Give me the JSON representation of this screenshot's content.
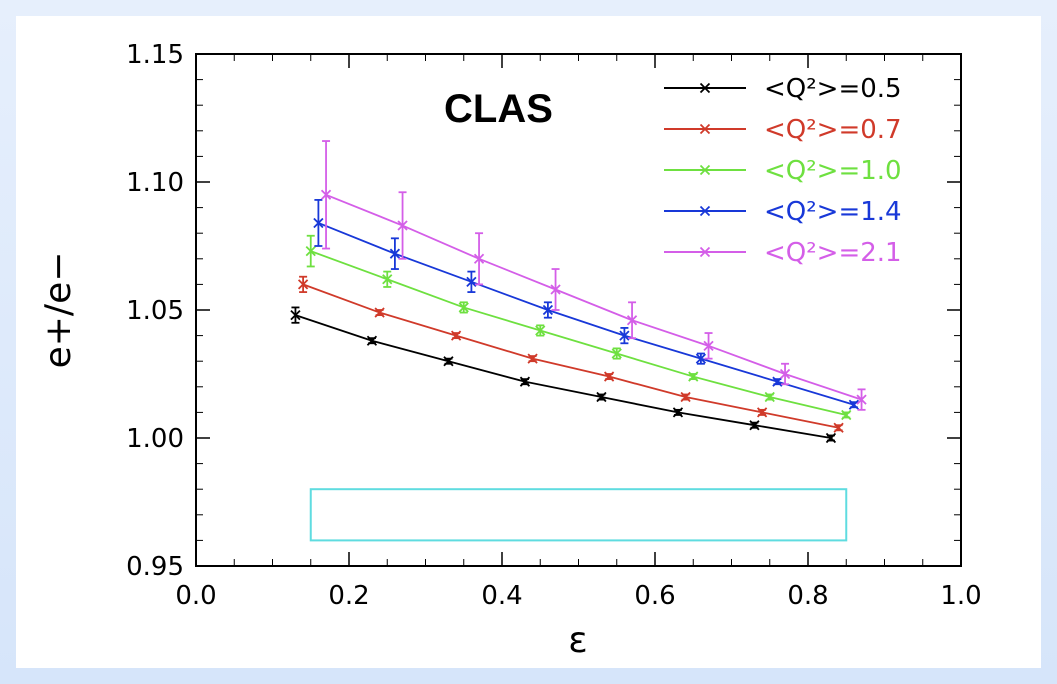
{
  "chart_data": {
    "type": "line",
    "title": "CLAS",
    "xlabel": "ε",
    "ylabel": "e+/e−",
    "xlim": [
      0.0,
      1.0
    ],
    "ylim": [
      0.95,
      1.15
    ],
    "xticks": [
      "0.0",
      "0.2",
      "0.4",
      "0.6",
      "0.8",
      "1.0"
    ],
    "yticks": [
      "0.95",
      "1.00",
      "1.05",
      "1.10",
      "1.15"
    ],
    "legend_position": "top-right",
    "systematic_band": {
      "x": [
        0.15,
        0.85
      ],
      "y": [
        0.96,
        0.98
      ],
      "color": "#5fdce0"
    },
    "series": [
      {
        "name": "<Q²>=0.5",
        "color": "#000000",
        "x": [
          0.13,
          0.23,
          0.33,
          0.43,
          0.53,
          0.63,
          0.73,
          0.83
        ],
        "y": [
          1.048,
          1.038,
          1.03,
          1.022,
          1.016,
          1.01,
          1.005,
          1.0
        ],
        "err": [
          0.003,
          0.001,
          0.001,
          0.001,
          0.001,
          0.001,
          0.001,
          0.001
        ]
      },
      {
        "name": "<Q²>=0.7",
        "color": "#d03a2a",
        "x": [
          0.14,
          0.24,
          0.34,
          0.44,
          0.54,
          0.64,
          0.74,
          0.84
        ],
        "y": [
          1.06,
          1.049,
          1.04,
          1.031,
          1.024,
          1.016,
          1.01,
          1.004
        ],
        "err": [
          0.003,
          0.001,
          0.001,
          0.001,
          0.001,
          0.001,
          0.001,
          0.001
        ]
      },
      {
        "name": "<Q²>=1.0",
        "color": "#6ee040",
        "x": [
          0.15,
          0.25,
          0.35,
          0.45,
          0.55,
          0.65,
          0.75,
          0.85
        ],
        "y": [
          1.073,
          1.062,
          1.051,
          1.042,
          1.033,
          1.024,
          1.016,
          1.009
        ],
        "err": [
          0.006,
          0.003,
          0.002,
          0.002,
          0.002,
          0.001,
          0.001,
          0.001
        ]
      },
      {
        "name": "<Q²>=1.4",
        "color": "#1838d8",
        "x": [
          0.16,
          0.26,
          0.36,
          0.46,
          0.56,
          0.66,
          0.76,
          0.86
        ],
        "y": [
          1.084,
          1.072,
          1.061,
          1.05,
          1.04,
          1.031,
          1.022,
          1.013
        ],
        "err": [
          0.009,
          0.006,
          0.004,
          0.003,
          0.003,
          0.002,
          0.001,
          0.001
        ]
      },
      {
        "name": "<Q²>=2.1",
        "color": "#d45ee8",
        "x": [
          0.17,
          0.27,
          0.37,
          0.47,
          0.57,
          0.67,
          0.77,
          0.87
        ],
        "y": [
          1.095,
          1.083,
          1.07,
          1.058,
          1.046,
          1.036,
          1.025,
          1.015
        ],
        "err": [
          0.021,
          0.013,
          0.01,
          0.008,
          0.007,
          0.005,
          0.004,
          0.004
        ]
      }
    ]
  }
}
